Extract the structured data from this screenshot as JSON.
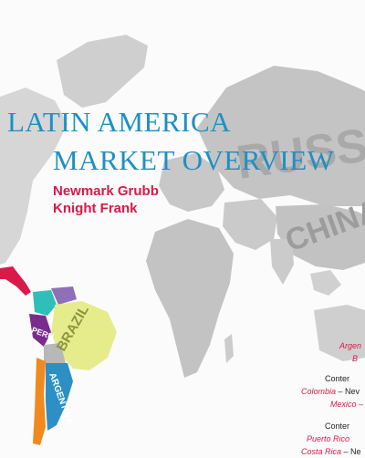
{
  "title": {
    "line1": "LATIN AMERICA",
    "line2": "MARKET OVERVIEW"
  },
  "brand": {
    "line1": "Newmark Grubb",
    "line2": "Knight Frank"
  },
  "map_words": {
    "russia": "RUSSIA",
    "china": "CHINA",
    "brazil": "BRAZIL",
    "peru": "PERU",
    "argentina": "ARGENTINA"
  },
  "contents": {
    "row1": "Argen",
    "row2": "B",
    "row3": "Conter",
    "row4_country": "Colombia",
    "row4_rest": " – Nev",
    "row5": "Mexico –",
    "row6": "Conter",
    "row7": "Puerto Rico",
    "row8_country": "Costa Rica",
    "row8_rest": " – Ne"
  },
  "colors": {
    "title": "#1f8fc4",
    "brand": "#d8194a",
    "map_grey": "#c6c6c6",
    "brazil": "#e6ec8c",
    "peru": "#7a2c8c",
    "argentina": "#2d8fc4",
    "chile": "#f08a1e",
    "colombia": "#2fbfb8",
    "central_america": "#d8194a"
  }
}
